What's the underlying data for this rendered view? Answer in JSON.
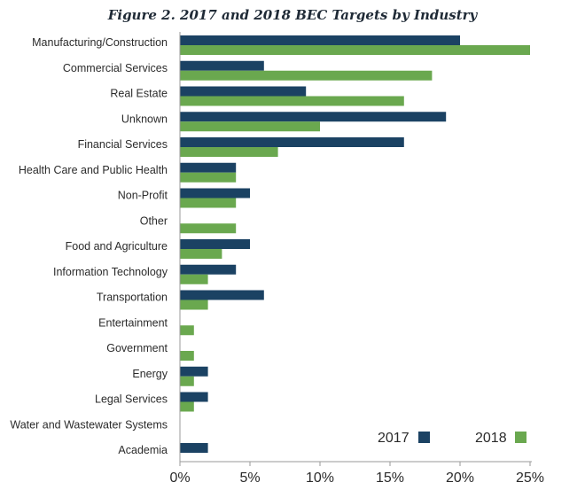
{
  "chart_data": {
    "type": "bar",
    "orientation": "horizontal",
    "title": "Figure 2. 2017 and 2018 BEC Targets by Industry",
    "categories": [
      "Manufacturing/Construction",
      "Commercial Services",
      "Real Estate",
      "Unknown",
      "Financial Services",
      "Health Care and Public Health",
      "Non-Profit",
      "Other",
      "Food and Agriculture",
      "Information Technology",
      "Transportation",
      "Entertainment",
      "Government",
      "Energy",
      "Legal Services",
      "Water and Wastewater Systems",
      "Academia"
    ],
    "series": [
      {
        "name": "2017",
        "color": "#1b4263",
        "values": [
          20,
          6,
          9,
          19,
          16,
          4,
          5,
          0,
          5,
          4,
          6,
          0,
          0,
          2,
          2,
          0,
          2
        ]
      },
      {
        "name": "2018",
        "color": "#6aa84f",
        "values": [
          25,
          18,
          16,
          10,
          7,
          4,
          4,
          4,
          3,
          2,
          2,
          1,
          1,
          1,
          1,
          0,
          0
        ]
      }
    ],
    "xlim": [
      0,
      25
    ],
    "xticks": [
      0,
      5,
      10,
      15,
      20,
      25
    ],
    "xtick_labels": [
      "0%",
      "5%",
      "10%",
      "15%",
      "20%",
      "25%"
    ],
    "grid": false,
    "legend_position": "bottom-right"
  }
}
